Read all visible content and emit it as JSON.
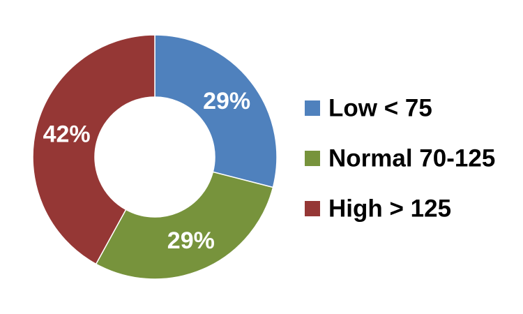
{
  "chart_data": {
    "type": "pie",
    "variant": "donut",
    "categories": [
      "Low < 75",
      "Normal 70-125",
      "High > 125"
    ],
    "values": [
      29,
      29,
      42
    ],
    "labels": [
      "29%",
      "29%",
      "42%"
    ],
    "colors": [
      "#4F81BD",
      "#77933C",
      "#953735"
    ],
    "legend_position": "right",
    "title": ""
  }
}
